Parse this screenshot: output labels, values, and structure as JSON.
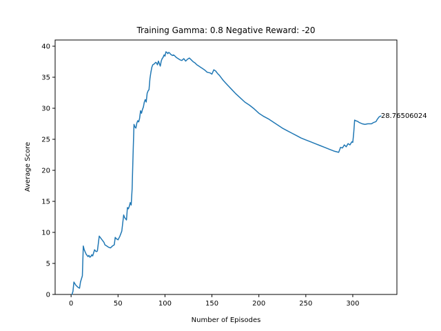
{
  "chart_data": {
    "type": "line",
    "title": "Training Gamma: 0.8 Negative Reward: -20",
    "xlabel": "Number of Episodes",
    "ylabel": "Average Score",
    "xlim": [
      -17,
      347
    ],
    "ylim": [
      0,
      41
    ],
    "xticks": [
      0,
      50,
      100,
      150,
      200,
      250,
      300
    ],
    "yticks": [
      0,
      5,
      10,
      15,
      20,
      25,
      30,
      35,
      40
    ],
    "grid": false,
    "legend": "none",
    "line_color": "#1f77b4",
    "annotation": {
      "x": 330,
      "y": 28.76,
      "text": "28.76506024"
    },
    "series": [
      {
        "x": [
          1,
          2,
          3,
          5,
          7,
          9,
          10,
          11,
          12,
          13,
          14,
          16,
          18,
          19,
          20,
          21,
          22,
          23,
          25,
          26,
          27,
          28,
          30,
          33,
          35,
          36,
          38,
          40,
          42,
          44,
          46,
          47,
          48,
          50,
          52,
          54,
          56,
          57,
          58,
          59,
          60,
          61,
          62,
          63,
          64,
          65,
          66,
          67,
          68,
          69,
          70,
          71,
          72,
          73,
          74,
          75,
          76,
          77,
          78,
          79,
          80,
          81,
          82,
          83,
          84,
          85,
          86,
          87,
          88,
          89,
          90,
          91,
          92,
          93,
          94,
          95,
          96,
          97,
          98,
          99,
          100,
          101,
          102,
          103,
          104,
          105,
          106,
          107,
          108,
          109,
          110,
          112,
          114,
          116,
          118,
          120,
          122,
          124,
          126,
          128,
          130,
          132,
          134,
          136,
          138,
          140,
          142,
          145,
          148,
          150,
          152,
          154,
          156,
          158,
          160,
          162,
          165,
          170,
          175,
          180,
          185,
          190,
          195,
          200,
          205,
          210,
          215,
          220,
          225,
          230,
          235,
          240,
          245,
          250,
          255,
          260,
          265,
          270,
          275,
          280,
          285,
          287,
          289,
          291,
          293,
          295,
          297,
          299,
          300,
          301,
          302,
          303,
          305,
          307,
          310,
          313,
          316,
          320,
          322,
          324,
          325,
          326,
          327,
          328,
          329,
          330
        ],
        "y": [
          0.0,
          0.5,
          2.0,
          1.5,
          1.2,
          1.0,
          2.0,
          2.5,
          3.0,
          7.8,
          7.2,
          6.5,
          6.1,
          6.3,
          6.0,
          6.1,
          6.4,
          6.2,
          7.2,
          7.0,
          6.9,
          7.0,
          9.4,
          8.8,
          8.4,
          8.0,
          7.8,
          7.6,
          7.5,
          7.8,
          8.0,
          9.2,
          9.0,
          8.8,
          9.4,
          10.2,
          12.8,
          12.4,
          12.2,
          12.0,
          14.0,
          13.8,
          14.2,
          14.8,
          14.4,
          17.0,
          22.5,
          27.4,
          27.0,
          26.8,
          27.6,
          28.0,
          27.8,
          28.4,
          29.6,
          29.2,
          29.8,
          30.2,
          31.0,
          31.4,
          31.0,
          32.4,
          32.8,
          33.0,
          34.8,
          35.8,
          36.6,
          37.0,
          37.1,
          37.2,
          37.4,
          37.3,
          37.0,
          37.6,
          37.2,
          36.8,
          37.6,
          38.0,
          38.2,
          38.6,
          38.4,
          39.1,
          39.0,
          38.8,
          39.0,
          38.9,
          38.7,
          38.6,
          38.5,
          38.6,
          38.5,
          38.2,
          38.0,
          37.8,
          37.7,
          38.0,
          37.6,
          37.9,
          38.1,
          37.8,
          37.5,
          37.3,
          37.0,
          36.8,
          36.6,
          36.4,
          36.2,
          35.8,
          35.7,
          35.5,
          36.2,
          36.0,
          35.6,
          35.3,
          34.9,
          34.5,
          34.0,
          33.2,
          32.4,
          31.7,
          31.0,
          30.5,
          29.9,
          29.2,
          28.7,
          28.3,
          27.8,
          27.3,
          26.8,
          26.4,
          26.0,
          25.6,
          25.2,
          24.9,
          24.6,
          24.3,
          24.0,
          23.7,
          23.4,
          23.1,
          22.9,
          23.7,
          23.6,
          24.1,
          23.8,
          24.3,
          24.1,
          24.6,
          24.5,
          26.0,
          28.1,
          28.0,
          27.9,
          27.7,
          27.5,
          27.4,
          27.5,
          27.5,
          27.7,
          27.8,
          27.9,
          28.2,
          28.4,
          28.6,
          28.7,
          28.76
        ]
      }
    ]
  }
}
